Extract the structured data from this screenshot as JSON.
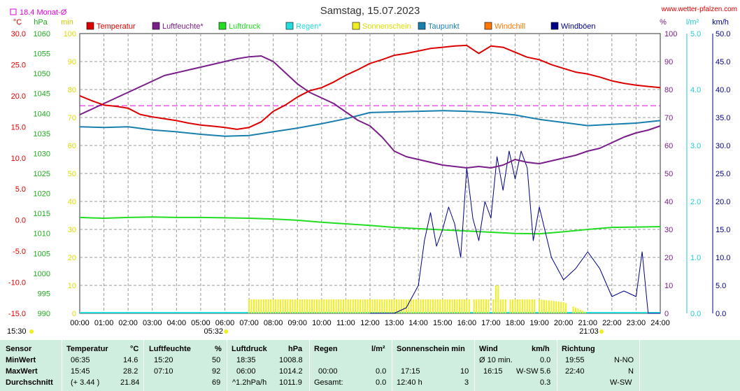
{
  "header": {
    "title": "Samstag, 15.07.2023",
    "site": "www.wetter-pfalzen.com",
    "month_avg": "18.4 Monat-Ø"
  },
  "chart_data": {
    "type": "line",
    "title": "Samstag, 15.07.2023",
    "legend": [
      "Temperatur",
      "Luftfeuchte*",
      "Luftdruck",
      "Regen*",
      "Sonnenschein",
      "Taupunkt",
      "Windchill",
      "Windböen"
    ],
    "legend_colors": [
      "#dd0000",
      "#7a1f8a",
      "#22dd22",
      "#22dddd",
      "#eeee22",
      "#1a7fae",
      "#ff7700",
      "#000088"
    ],
    "axis_units": {
      "temp": "°C",
      "press": "hPa",
      "sun": "min",
      "hum": "%",
      "rain": "l/m²",
      "wind": "km/h"
    },
    "temp_ticks": [
      "30.0",
      "25.0",
      "20.0",
      "15.0",
      "10.0",
      "5.0",
      "0.0",
      "-5.0",
      "-10.0",
      "-15.0"
    ],
    "press_ticks": [
      "1060",
      "1055",
      "1050",
      "1045",
      "1040",
      "1035",
      "1030",
      "1025",
      "1020",
      "1015",
      "1010",
      "1005",
      "1000",
      "995",
      "990"
    ],
    "sun_ticks": [
      "100",
      "90",
      "80",
      "70",
      "60",
      "50",
      "40",
      "30",
      "20",
      "10",
      "0"
    ],
    "hum_ticks": [
      "100",
      "90",
      "80",
      "70",
      "60",
      "50",
      "40",
      "30",
      "20",
      "10",
      "0"
    ],
    "rain_ticks": [
      "5.0",
      "4.0",
      "3.0",
      "2.0",
      "1.0",
      "0.0"
    ],
    "wind_ticks": [
      "50.0",
      "45.0",
      "40.0",
      "35.0",
      "30.0",
      "25.0",
      "20.0",
      "15.0",
      "10.0",
      "5.0",
      "0.0"
    ],
    "x_ticks": [
      "00:00",
      "01:00",
      "02:00",
      "03:00",
      "04:00",
      "05:00",
      "06:00",
      "07:00",
      "08:00",
      "09:00",
      "10:00",
      "11:00",
      "12:00",
      "13:00",
      "14:00",
      "15:00",
      "16:00",
      "17:00",
      "18:00",
      "19:00",
      "20:00",
      "21:00",
      "22:00",
      "23:00",
      "24:00"
    ],
    "sunrise": "05:32",
    "sunset": "21:03",
    "prev_sunset": "15:30",
    "month_avg_temp": 18.4,
    "series": [
      {
        "name": "Temperatur",
        "unit": "°C",
        "x": [
          0,
          0.5,
          1,
          1.5,
          2,
          2.5,
          3,
          3.5,
          4,
          4.5,
          5,
          5.5,
          6,
          6.5,
          7,
          7.5,
          8,
          8.5,
          9,
          9.5,
          10,
          10.5,
          11,
          11.5,
          12,
          12.5,
          13,
          13.5,
          14,
          14.5,
          15,
          15.5,
          16,
          16.5,
          17,
          17.5,
          18,
          18.5,
          19,
          19.5,
          20,
          20.5,
          21,
          21.5,
          22,
          22.5,
          23,
          23.5,
          24
        ],
        "values": [
          20.0,
          19.2,
          18.5,
          18.3,
          18.0,
          17.0,
          16.6,
          16.3,
          16.0,
          15.6,
          15.3,
          15.1,
          14.9,
          14.6,
          14.9,
          15.8,
          17.5,
          18.5,
          19.8,
          20.8,
          21.3,
          22.2,
          23.3,
          24.2,
          25.2,
          25.8,
          26.5,
          26.8,
          27.2,
          27.6,
          27.8,
          28.0,
          28.1,
          26.8,
          28.0,
          27.8,
          27.0,
          26.2,
          25.8,
          25.0,
          24.4,
          23.8,
          23.5,
          23.0,
          22.4,
          22.0,
          21.7,
          21.5,
          21.3
        ]
      },
      {
        "name": "Luftfeuchte*",
        "unit": "%",
        "x": [
          0,
          0.5,
          1,
          1.5,
          2,
          2.5,
          3,
          3.5,
          4,
          4.5,
          5,
          5.5,
          6,
          6.5,
          7,
          7.5,
          8,
          8.5,
          9,
          9.5,
          10,
          10.5,
          11,
          11.5,
          12,
          12.5,
          13,
          13.5,
          14,
          14.5,
          15,
          15.5,
          16,
          16.5,
          17,
          17.5,
          18,
          18.5,
          19,
          19.5,
          20,
          20.5,
          21,
          21.5,
          22,
          22.5,
          23,
          23.5,
          24
        ],
        "values": [
          71,
          73,
          75,
          77,
          79,
          81,
          83,
          85,
          86,
          87,
          88,
          89,
          90,
          91,
          91.7,
          92,
          90,
          86,
          82,
          79,
          77,
          75,
          72,
          69,
          67,
          63,
          58,
          56,
          55,
          54,
          53,
          52.5,
          52,
          52.5,
          52,
          53,
          55,
          54,
          53.5,
          54.5,
          55.5,
          56.5,
          58,
          59,
          61,
          63,
          64.5,
          65.5,
          67
        ]
      },
      {
        "name": "Luftdruck",
        "unit": "hPa",
        "x": [
          0,
          1,
          2,
          3,
          4,
          5,
          6,
          7,
          8,
          9,
          10,
          11,
          12,
          13,
          14,
          15,
          16,
          17,
          18,
          19,
          20,
          21,
          22,
          23,
          24
        ],
        "values": [
          1014.0,
          1013.8,
          1014.0,
          1014.1,
          1014.0,
          1014.0,
          1013.9,
          1013.8,
          1013.6,
          1013.3,
          1012.8,
          1012.4,
          1012.0,
          1011.5,
          1011.2,
          1010.9,
          1010.6,
          1010.3,
          1010.0,
          1009.9,
          1010.4,
          1011.0,
          1011.5,
          1011.6,
          1011.7
        ]
      },
      {
        "name": "Taupunkt",
        "unit": "°C",
        "x": [
          0,
          1,
          2,
          3,
          4,
          5,
          6,
          7,
          8,
          9,
          10,
          11,
          12,
          13,
          14,
          15,
          16,
          17,
          18,
          19,
          20,
          21,
          22,
          23,
          24
        ],
        "values": [
          15.0,
          14.9,
          15.0,
          14.5,
          14.2,
          13.8,
          13.5,
          13.6,
          14.2,
          14.8,
          15.5,
          16.3,
          17.3,
          17.4,
          17.5,
          17.6,
          17.5,
          17.3,
          16.9,
          16.2,
          15.7,
          15.2,
          15.4,
          15.6,
          16.0
        ]
      },
      {
        "name": "Windböen",
        "unit": "km/h",
        "x": [
          12,
          12.5,
          13,
          13.5,
          14,
          14.25,
          14.5,
          14.75,
          15,
          15.25,
          15.5,
          15.75,
          16,
          16.25,
          16.5,
          16.75,
          17,
          17.25,
          17.5,
          17.75,
          18,
          18.25,
          18.5,
          18.75,
          19,
          19.5,
          20,
          20.5,
          21,
          21.5,
          22,
          22.5,
          23,
          23.25,
          23.5,
          24
        ],
        "values": [
          0,
          0,
          0,
          1,
          5,
          13,
          18,
          12,
          15,
          19,
          16,
          10,
          26,
          17,
          13,
          20,
          17,
          28,
          22,
          29,
          24,
          29,
          26,
          13,
          19,
          10,
          6,
          8,
          11,
          8,
          3,
          4,
          3,
          11,
          0,
          0
        ]
      },
      {
        "name": "Sonnenschein",
        "unit": "min",
        "x": [
          5.32,
          7,
          8,
          9,
          10,
          11,
          12,
          13,
          14,
          15,
          16,
          17,
          17.5,
          18,
          18.5,
          19,
          20,
          21.05
        ],
        "values": [
          0,
          5,
          5,
          5,
          5,
          5,
          5,
          5,
          5,
          5,
          5,
          5,
          5,
          5,
          5,
          5,
          4,
          0
        ]
      }
    ]
  },
  "stats": {
    "headers": {
      "sensor": "Sensor",
      "temp": "Temperatur",
      "temp_unit": "°C",
      "hum": "Luftfeuchte",
      "hum_unit": "%",
      "press": "Luftdruck",
      "press_unit": "hPa",
      "rain": "Regen",
      "rain_unit": "l/m²",
      "sun": "Sonnenschein min",
      "wind": "Wind",
      "wind_unit": "km/h",
      "dir": "Richtung"
    },
    "rows": [
      {
        "label": "MinWert",
        "t_time": "06:35",
        "t_val": "14.6",
        "h_time": "15:20",
        "h_val": "50",
        "p_time": "18:35",
        "p_val": "1008.8",
        "r_time": "",
        "r_val": "",
        "s_time": "",
        "s_val": "",
        "w_time": "Ø 10 min.",
        "w_val": "0.0",
        "d_time": "19:55",
        "d_val": "N-NO"
      },
      {
        "label": "MaxWert",
        "t_time": "15:45",
        "t_val": "28.2",
        "h_time": "07:10",
        "h_val": "92",
        "p_time": "06:00",
        "p_val": "1014.2",
        "r_time": "00:00",
        "r_val": "0.0",
        "s_time": "17:15",
        "s_val": "10",
        "w_time": "16:15",
        "w_dir": "W-SW",
        "w_val": "5.6",
        "d_time": "22:40",
        "d_val": "N"
      },
      {
        "label": "Durchschnitt",
        "t_time": "(+ 3.44 )",
        "t_val": "21.84",
        "h_time": "",
        "h_val": "69",
        "p_time": "^1.2hPa/h",
        "p_val": "1011.9",
        "r_time": "Gesamt:",
        "r_val": "0.0",
        "s_time": "12:40 h",
        "s_val": "3",
        "w_time": "",
        "w_val": "0.3",
        "d_time": "",
        "d_val": "W-SW"
      }
    ]
  }
}
